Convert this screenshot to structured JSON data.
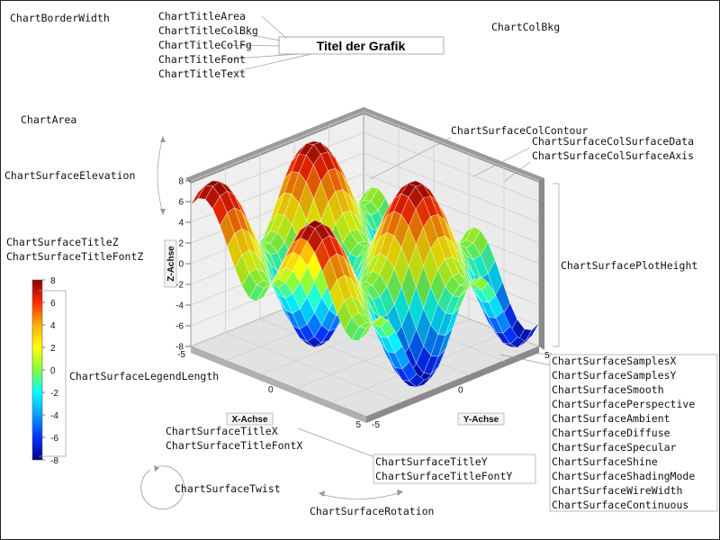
{
  "annotations": {
    "chart_border_width": "ChartBorderWidth",
    "title_labels": [
      "ChartTitleArea",
      "ChartTitleColBkg",
      "ChartTitleColFg",
      "ChartTitleFont",
      "ChartTitleText"
    ],
    "chart_col_bkg": "ChartColBkg",
    "chart_area": "ChartArea",
    "surface_elevation": "ChartSurfaceElevation",
    "surface_title_z": "ChartSurfaceTitleZ",
    "surface_title_font_z": "ChartSurfaceTitleFontZ",
    "col_contour": "ChartSurfaceColContour",
    "col_surface_data": "ChartSurfaceColSurfaceData",
    "col_surface_axis": "ChartSurfaceColSurfaceAxis",
    "plot_height": "ChartSurfacePlotHeight",
    "legend_length": "ChartSurfaceLegendLength",
    "surface_title_x": "ChartSurfaceTitleX",
    "surface_title_font_x": "ChartSurfaceTitleFontX",
    "surface_title_y": "ChartSurfaceTitleY",
    "surface_title_font_y": "ChartSurfaceTitleFontY",
    "surface_twist": "ChartSurfaceTwist",
    "surface_rotation": "ChartSurfaceRotation",
    "settings_list": [
      "ChartSurfaceSamplesX",
      "ChartSurfaceSamplesY",
      "ChartSurfaceSmooth",
      "ChartSurfacePerspective",
      "ChartSurfaceAmbient",
      "ChartSurfaceDiffuse",
      "ChartSurfaceSpecular",
      "ChartSurfaceShine",
      "ChartSurfaceShadingMode",
      "ChartSurfaceWireWidth",
      "ChartSurfaceContinuous"
    ]
  },
  "chart_data": {
    "type": "surface",
    "title": "Titel der Grafik",
    "xlabel": "X-Achse",
    "ylabel": "Y-Achse",
    "zlabel": "Z-Achse",
    "xlim": [
      -5,
      5
    ],
    "ylim": [
      -5,
      5
    ],
    "zlim": [
      -8,
      8
    ],
    "x_ticks": [
      "-5",
      "0",
      "5"
    ],
    "y_ticks": [
      "-5",
      "0",
      "5"
    ],
    "z_ticks": [
      "8",
      "6",
      "4",
      "2",
      "0",
      "-2",
      "-4",
      "-6",
      "-8"
    ],
    "legend_ticks": [
      "8",
      "6",
      "4",
      "2",
      "0",
      "-2",
      "-4",
      "-6",
      "-8"
    ],
    "colormap": [
      "#8b0000",
      "#ff2a00",
      "#ffb000",
      "#ffff00",
      "#80ff40",
      "#00ffff",
      "#00a0ff",
      "#0030ff",
      "#00008b"
    ],
    "surface_function": "z = 4*(sin(1.1*x) + sin(1.1*y))",
    "grid": true
  }
}
